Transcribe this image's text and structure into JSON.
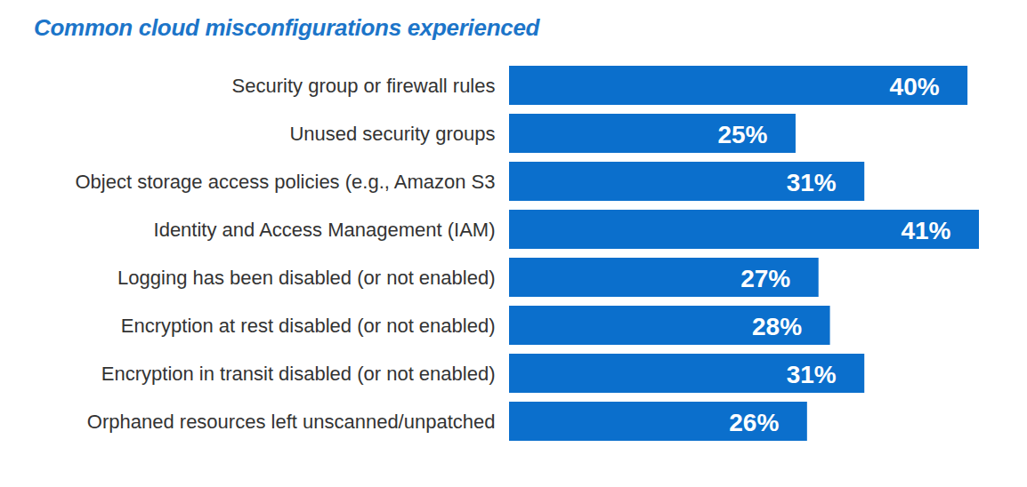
{
  "chart_data": {
    "type": "bar",
    "title": "Common cloud misconfigurations experienced",
    "orientation": "horizontal",
    "categories": [
      "Security group or firewall rules",
      "Unused security groups",
      "Object storage access policies (e.g., Amazon S3",
      "Identity and Access Management (IAM)",
      "Logging has been disabled (or not enabled)",
      "Encryption at rest disabled (or not enabled)",
      "Encryption in transit disabled (or not enabled)",
      "Orphaned resources left unscanned/unpatched"
    ],
    "values": [
      40,
      25,
      31,
      41,
      27,
      28,
      31,
      26
    ],
    "value_labels": [
      "40%",
      "25%",
      "31%",
      "41%",
      "27%",
      "28%",
      "31%",
      "26%"
    ],
    "color": "#0b6fcc",
    "xlim": [
      0,
      41
    ],
    "grid": false,
    "data_labels": true,
    "tick_labels": "y"
  }
}
